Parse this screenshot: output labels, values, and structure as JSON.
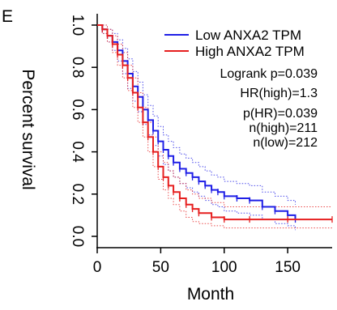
{
  "panel_label": "E",
  "chart_data": {
    "type": "line",
    "xlabel": "Month",
    "ylabel": "Percent survival",
    "xlim": [
      0,
      185
    ],
    "ylim": [
      0,
      1.0
    ],
    "x_ticks": [
      "0",
      "50",
      "100",
      "150"
    ],
    "y_ticks": [
      "0.0",
      "0.2",
      "0.4",
      "0.6",
      "0.8",
      "1.0"
    ],
    "legend": {
      "placement": "top-right",
      "entries": [
        "Low ANXA2 TPM",
        "High ANXA2 TPM"
      ]
    },
    "stats": [
      "Logrank p=0.039",
      "HR(high)=1.3",
      "p(HR)=0.039",
      "n(high)=211",
      "n(low)=212"
    ],
    "series": [
      {
        "name": "Low ANXA2 TPM",
        "color": "#1f1fe6",
        "step": true,
        "x": [
          0,
          4,
          8,
          12,
          16,
          20,
          24,
          28,
          32,
          36,
          40,
          44,
          48,
          52,
          56,
          60,
          65,
          70,
          75,
          80,
          85,
          90,
          95,
          100,
          110,
          120,
          130,
          140,
          150,
          156
        ],
        "y": [
          1.0,
          0.98,
          0.95,
          0.92,
          0.88,
          0.83,
          0.77,
          0.71,
          0.66,
          0.6,
          0.55,
          0.5,
          0.45,
          0.41,
          0.38,
          0.35,
          0.32,
          0.3,
          0.28,
          0.26,
          0.24,
          0.22,
          0.21,
          0.19,
          0.18,
          0.17,
          0.14,
          0.12,
          0.1,
          0.08
        ],
        "ci_upper": [
          1.0,
          1.0,
          0.98,
          0.96,
          0.93,
          0.89,
          0.84,
          0.78,
          0.73,
          0.67,
          0.62,
          0.57,
          0.52,
          0.48,
          0.45,
          0.42,
          0.39,
          0.37,
          0.35,
          0.33,
          0.31,
          0.29,
          0.28,
          0.26,
          0.25,
          0.24,
          0.21,
          0.19,
          0.17,
          0.15
        ],
        "ci_lower": [
          1.0,
          0.96,
          0.92,
          0.88,
          0.83,
          0.77,
          0.7,
          0.64,
          0.59,
          0.53,
          0.48,
          0.43,
          0.38,
          0.34,
          0.31,
          0.28,
          0.25,
          0.23,
          0.21,
          0.19,
          0.17,
          0.15,
          0.14,
          0.12,
          0.11,
          0.1,
          0.08,
          0.06,
          0.05,
          0.03
        ]
      },
      {
        "name": "High ANXA2 TPM",
        "color": "#e61f1f",
        "step": true,
        "x": [
          0,
          4,
          8,
          12,
          16,
          20,
          24,
          28,
          32,
          36,
          40,
          44,
          48,
          52,
          56,
          60,
          65,
          70,
          75,
          80,
          90,
          100,
          120,
          150,
          185
        ],
        "y": [
          1.0,
          0.98,
          0.95,
          0.91,
          0.86,
          0.81,
          0.75,
          0.68,
          0.61,
          0.54,
          0.47,
          0.4,
          0.33,
          0.28,
          0.24,
          0.21,
          0.18,
          0.15,
          0.13,
          0.11,
          0.09,
          0.08,
          0.08,
          0.08,
          0.08
        ],
        "ci_upper": [
          1.0,
          1.0,
          0.98,
          0.95,
          0.91,
          0.87,
          0.81,
          0.75,
          0.68,
          0.61,
          0.54,
          0.47,
          0.4,
          0.35,
          0.31,
          0.28,
          0.25,
          0.22,
          0.2,
          0.18,
          0.16,
          0.14,
          0.14,
          0.14,
          0.14
        ],
        "ci_lower": [
          1.0,
          0.96,
          0.92,
          0.87,
          0.81,
          0.75,
          0.69,
          0.61,
          0.54,
          0.47,
          0.4,
          0.33,
          0.27,
          0.22,
          0.18,
          0.15,
          0.12,
          0.09,
          0.07,
          0.06,
          0.05,
          0.04,
          0.04,
          0.04,
          0.04
        ]
      }
    ]
  }
}
